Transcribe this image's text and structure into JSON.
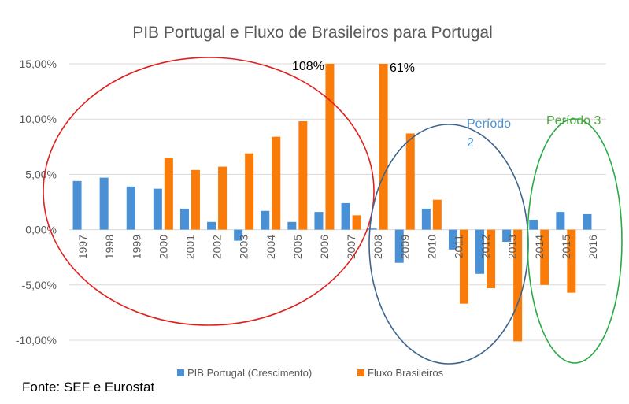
{
  "chart_data": {
    "type": "bar",
    "title": "PIB Portugal e Fluxo de Brasileiros para Portugal",
    "categories": [
      "1997",
      "1998",
      "1999",
      "2000",
      "2001",
      "2002",
      "2003",
      "2004",
      "2005",
      "2006",
      "2007",
      "2008",
      "2009",
      "2010",
      "2011",
      "2012",
      "2013",
      "2014",
      "2015",
      "2016"
    ],
    "series": [
      {
        "name": "PIB Portugal (Crescimento)",
        "color": "#4a90d4",
        "values": [
          4.4,
          4.7,
          3.9,
          3.7,
          1.9,
          0.7,
          -1.0,
          1.7,
          0.7,
          1.6,
          2.4,
          0.1,
          -3.0,
          1.9,
          -1.8,
          -4.0,
          -1.1,
          0.9,
          1.6,
          1.4
        ]
      },
      {
        "name": "Fluxo Brasileiros",
        "color": "#f97c0b",
        "values": [
          null,
          null,
          null,
          6.5,
          5.4,
          5.7,
          6.9,
          8.4,
          9.8,
          15.0,
          1.3,
          15.0,
          8.7,
          2.7,
          -6.7,
          -5.3,
          -10.1,
          -5.0,
          -5.7,
          null
        ]
      }
    ],
    "yticks": [
      15,
      10,
      5,
      0,
      -5,
      -10
    ],
    "ytick_labels": [
      "15,00%",
      "10,00%",
      "5,00%",
      "0,00%",
      "-5,00%",
      "-10,00%"
    ],
    "ylim": [
      -10,
      15
    ],
    "xlabel": "",
    "ylabel": "",
    "grid": true,
    "legend_position": "bottom",
    "annotations": {
      "label_2006": "108%",
      "label_2008": "61%",
      "periodo2_line1": "Período",
      "periodo2_line2": "2",
      "periodo3": "Período 3"
    },
    "source": "Fonte: SEF e Eurostat"
  }
}
